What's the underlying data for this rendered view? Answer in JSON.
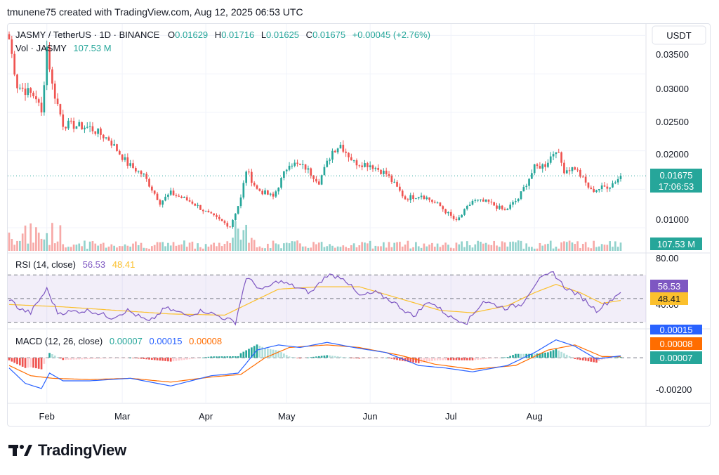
{
  "header": {
    "caption": "tmunene75 created with TradingView.com, Aug 12, 2025 06:53 UTC"
  },
  "colors": {
    "up": "#26a69a",
    "down": "#ef5350",
    "rsi": "#7e57c2",
    "rsi_ma": "#fbc02d",
    "macd": "#2962ff",
    "signal": "#ff6d00",
    "accent_blue": "#2962ff"
  },
  "legend": {
    "symbol": "JASMY / TetherUS · 1D · BINANCE",
    "o_label": "O",
    "o_value": "0.01629",
    "h_label": "H",
    "h_value": "0.01716",
    "l_label": "L",
    "l_value": "0.01625",
    "c_label": "C",
    "c_value": "0.01675",
    "change": "+0.00045 (+2.76%)",
    "vol_label": "Vol · JASMY",
    "vol_value": "107.53 M"
  },
  "currency_button": "USDT",
  "price_axis": {
    "ticks": [
      "0.03500",
      "0.03000",
      "0.02500",
      "0.02000",
      "0.01000"
    ],
    "last_price": "0.01675",
    "countdown": "17:06:53",
    "volume_badge": "107.53 M"
  },
  "rsi_panel": {
    "label": "RSI (14, close)",
    "value": "56.53",
    "ma_value": "48.41",
    "ticks": [
      "80.00",
      "40.00"
    ]
  },
  "macd_panel": {
    "label": "MACD (12, 26, close)",
    "hist_value": "0.00007",
    "macd_value": "0.00015",
    "signal_value": "0.00008",
    "ticks": [
      "-0.00200"
    ]
  },
  "time_axis": [
    "Feb",
    "Mar",
    "Apr",
    "May",
    "Jun",
    "Jul",
    "Aug"
  ],
  "footer": {
    "brand": "TradingView"
  },
  "chart_data": {
    "type": "candlestick",
    "price_range": [
      0.007,
      0.0365
    ],
    "last_price": 0.01675,
    "price_keypoints": [
      {
        "day": 0,
        "price": 0.0345
      },
      {
        "day": 3,
        "price": 0.0285
      },
      {
        "day": 10,
        "price": 0.027
      },
      {
        "day": 12,
        "price": 0.0248
      },
      {
        "day": 14,
        "price": 0.0335
      },
      {
        "day": 16,
        "price": 0.0285
      },
      {
        "day": 20,
        "price": 0.0235
      },
      {
        "day": 30,
        "price": 0.023
      },
      {
        "day": 37,
        "price": 0.0215
      },
      {
        "day": 44,
        "price": 0.0183
      },
      {
        "day": 50,
        "price": 0.0168
      },
      {
        "day": 56,
        "price": 0.0133
      },
      {
        "day": 60,
        "price": 0.0145
      },
      {
        "day": 68,
        "price": 0.0133
      },
      {
        "day": 74,
        "price": 0.0118
      },
      {
        "day": 82,
        "price": 0.0102
      },
      {
        "day": 86,
        "price": 0.0138
      },
      {
        "day": 88,
        "price": 0.0175
      },
      {
        "day": 92,
        "price": 0.015
      },
      {
        "day": 98,
        "price": 0.014
      },
      {
        "day": 104,
        "price": 0.0185
      },
      {
        "day": 110,
        "price": 0.0178
      },
      {
        "day": 115,
        "price": 0.016
      },
      {
        "day": 120,
        "price": 0.02
      },
      {
        "day": 123,
        "price": 0.0208
      },
      {
        "day": 128,
        "price": 0.0185
      },
      {
        "day": 134,
        "price": 0.0182
      },
      {
        "day": 140,
        "price": 0.017
      },
      {
        "day": 147,
        "price": 0.0138
      },
      {
        "day": 153,
        "price": 0.0143
      },
      {
        "day": 160,
        "price": 0.0128
      },
      {
        "day": 166,
        "price": 0.0108
      },
      {
        "day": 172,
        "price": 0.0135
      },
      {
        "day": 178,
        "price": 0.0133
      },
      {
        "day": 184,
        "price": 0.0122
      },
      {
        "day": 189,
        "price": 0.0138
      },
      {
        "day": 195,
        "price": 0.0178
      },
      {
        "day": 199,
        "price": 0.0182
      },
      {
        "day": 203,
        "price": 0.0203
      },
      {
        "day": 206,
        "price": 0.0175
      },
      {
        "day": 210,
        "price": 0.0178
      },
      {
        "day": 216,
        "price": 0.0148
      },
      {
        "day": 223,
        "price": 0.0155
      },
      {
        "day": 227,
        "price": 0.0167
      }
    ],
    "rsi_range": [
      25,
      88
    ],
    "rsi_levels": [
      70,
      50,
      30
    ],
    "rsi_keypoints": [
      {
        "day": 0,
        "v": 50
      },
      {
        "day": 4,
        "v": 41
      },
      {
        "day": 8,
        "v": 38
      },
      {
        "day": 14,
        "v": 58
      },
      {
        "day": 18,
        "v": 38
      },
      {
        "day": 30,
        "v": 40
      },
      {
        "day": 38,
        "v": 34
      },
      {
        "day": 44,
        "v": 40
      },
      {
        "day": 52,
        "v": 30
      },
      {
        "day": 58,
        "v": 42
      },
      {
        "day": 66,
        "v": 36
      },
      {
        "day": 72,
        "v": 40
      },
      {
        "day": 84,
        "v": 30
      },
      {
        "day": 88,
        "v": 68
      },
      {
        "day": 94,
        "v": 57
      },
      {
        "day": 100,
        "v": 65
      },
      {
        "day": 106,
        "v": 60
      },
      {
        "day": 112,
        "v": 55
      },
      {
        "day": 118,
        "v": 70
      },
      {
        "day": 124,
        "v": 68
      },
      {
        "day": 130,
        "v": 52
      },
      {
        "day": 136,
        "v": 55
      },
      {
        "day": 142,
        "v": 48
      },
      {
        "day": 150,
        "v": 35
      },
      {
        "day": 156,
        "v": 48
      },
      {
        "day": 164,
        "v": 34
      },
      {
        "day": 170,
        "v": 30
      },
      {
        "day": 176,
        "v": 48
      },
      {
        "day": 184,
        "v": 42
      },
      {
        "day": 190,
        "v": 45
      },
      {
        "day": 196,
        "v": 65
      },
      {
        "day": 202,
        "v": 72
      },
      {
        "day": 206,
        "v": 60
      },
      {
        "day": 212,
        "v": 52
      },
      {
        "day": 218,
        "v": 40
      },
      {
        "day": 224,
        "v": 50
      },
      {
        "day": 227,
        "v": 56.5
      }
    ],
    "rsi_ma_keypoints": [
      {
        "day": 0,
        "v": 45
      },
      {
        "day": 20,
        "v": 43
      },
      {
        "day": 40,
        "v": 40
      },
      {
        "day": 60,
        "v": 37
      },
      {
        "day": 80,
        "v": 36
      },
      {
        "day": 90,
        "v": 47
      },
      {
        "day": 100,
        "v": 58
      },
      {
        "day": 115,
        "v": 60
      },
      {
        "day": 130,
        "v": 60
      },
      {
        "day": 145,
        "v": 50
      },
      {
        "day": 160,
        "v": 40
      },
      {
        "day": 172,
        "v": 38
      },
      {
        "day": 185,
        "v": 44
      },
      {
        "day": 195,
        "v": 55
      },
      {
        "day": 203,
        "v": 62
      },
      {
        "day": 212,
        "v": 55
      },
      {
        "day": 220,
        "v": 46
      },
      {
        "day": 227,
        "v": 48.4
      }
    ],
    "macd_range": [
      -0.0035,
      0.0022
    ],
    "macd_keypoints": [
      {
        "day": 0,
        "v": -0.0008
      },
      {
        "day": 6,
        "v": -0.002
      },
      {
        "day": 12,
        "v": -0.0024
      },
      {
        "day": 15,
        "v": -0.0012
      },
      {
        "day": 20,
        "v": -0.0018
      },
      {
        "day": 30,
        "v": -0.0018
      },
      {
        "day": 45,
        "v": -0.0016
      },
      {
        "day": 60,
        "v": -0.0022
      },
      {
        "day": 75,
        "v": -0.0014
      },
      {
        "day": 85,
        "v": -0.0012
      },
      {
        "day": 92,
        "v": 0.0006
      },
      {
        "day": 100,
        "v": 0.001
      },
      {
        "day": 108,
        "v": 0.0008
      },
      {
        "day": 118,
        "v": 0.0012
      },
      {
        "day": 128,
        "v": 0.0008
      },
      {
        "day": 140,
        "v": 0.0004
      },
      {
        "day": 152,
        "v": -0.0006
      },
      {
        "day": 162,
        "v": -0.0008
      },
      {
        "day": 172,
        "v": -0.0011
      },
      {
        "day": 185,
        "v": -0.0006
      },
      {
        "day": 195,
        "v": 0.0004
      },
      {
        "day": 203,
        "v": 0.0014
      },
      {
        "day": 210,
        "v": 0.0009
      },
      {
        "day": 218,
        "v": -0.0001
      },
      {
        "day": 227,
        "v": 0.00015
      }
    ],
    "signal_keypoints": [
      {
        "day": 0,
        "v": -0.0006
      },
      {
        "day": 8,
        "v": -0.0014
      },
      {
        "day": 16,
        "v": -0.0016
      },
      {
        "day": 30,
        "v": -0.0017
      },
      {
        "day": 45,
        "v": -0.0016
      },
      {
        "day": 60,
        "v": -0.0019
      },
      {
        "day": 75,
        "v": -0.0015
      },
      {
        "day": 86,
        "v": -0.0013
      },
      {
        "day": 95,
        "v": 0.0
      },
      {
        "day": 104,
        "v": 0.0008
      },
      {
        "day": 118,
        "v": 0.001
      },
      {
        "day": 130,
        "v": 0.0008
      },
      {
        "day": 145,
        "v": 0.0002
      },
      {
        "day": 158,
        "v": -0.0005
      },
      {
        "day": 172,
        "v": -0.0009
      },
      {
        "day": 188,
        "v": -0.0006
      },
      {
        "day": 200,
        "v": 0.0006
      },
      {
        "day": 210,
        "v": 0.001
      },
      {
        "day": 220,
        "v": 0.0001
      },
      {
        "day": 227,
        "v": 8e-05
      }
    ],
    "num_days": 228,
    "month_start_days": [
      14,
      42,
      73,
      103,
      134,
      164,
      195
    ]
  }
}
